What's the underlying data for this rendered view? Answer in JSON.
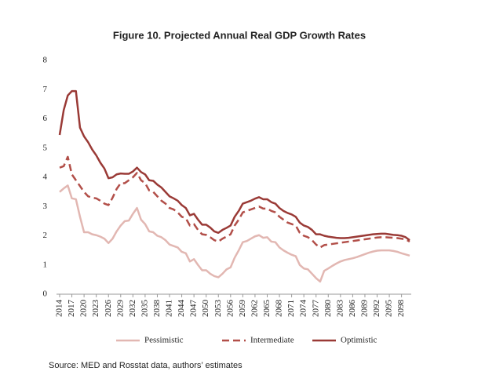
{
  "chart_data": {
    "type": "line",
    "title": "Figure 10. Projected Annual Real GDP Growth Rates",
    "source": "Source: MED and Rosstat data, authors’ estimates",
    "x": [
      2014,
      2015,
      2016,
      2017,
      2018,
      2019,
      2020,
      2021,
      2022,
      2023,
      2024,
      2025,
      2026,
      2027,
      2028,
      2029,
      2030,
      2031,
      2032,
      2033,
      2034,
      2035,
      2036,
      2037,
      2038,
      2039,
      2040,
      2041,
      2042,
      2043,
      2044,
      2045,
      2046,
      2047,
      2048,
      2049,
      2050,
      2051,
      2052,
      2053,
      2054,
      2055,
      2056,
      2057,
      2058,
      2059,
      2060,
      2061,
      2062,
      2063,
      2064,
      2065,
      2066,
      2067,
      2068,
      2069,
      2070,
      2071,
      2072,
      2073,
      2074,
      2075,
      2076,
      2077,
      2078,
      2079,
      2080,
      2081,
      2082,
      2083,
      2084,
      2085,
      2086,
      2087,
      2088,
      2089,
      2090,
      2091,
      2092,
      2093,
      2094,
      2095,
      2096,
      2097,
      2098,
      2099,
      2100
    ],
    "xlim": [
      2014,
      2100
    ],
    "xticks": [
      2014,
      2017,
      2020,
      2023,
      2026,
      2029,
      2032,
      2035,
      2038,
      2041,
      2044,
      2047,
      2050,
      2053,
      2056,
      2059,
      2062,
      2065,
      2068,
      2071,
      2074,
      2077,
      2080,
      2083,
      2086,
      2089,
      2092,
      2095,
      2098
    ],
    "ylim": [
      0,
      8
    ],
    "yticks": [
      0,
      1,
      2,
      3,
      4,
      5,
      6,
      7,
      8
    ],
    "grid": false,
    "legend": "bottom",
    "series": [
      {
        "name": "Pessimistic",
        "color": "#e2b7b2",
        "dash": false,
        "values": [
          3.5,
          3.62,
          3.72,
          3.28,
          3.25,
          2.65,
          2.12,
          2.12,
          2.05,
          2.02,
          1.97,
          1.9,
          1.75,
          1.9,
          2.15,
          2.35,
          2.5,
          2.52,
          2.75,
          2.95,
          2.55,
          2.4,
          2.15,
          2.12,
          2.0,
          1.95,
          1.85,
          1.7,
          1.65,
          1.6,
          1.45,
          1.4,
          1.12,
          1.2,
          1.0,
          0.82,
          0.82,
          0.7,
          0.62,
          0.58,
          0.7,
          0.85,
          0.92,
          1.25,
          1.5,
          1.78,
          1.82,
          1.9,
          1.98,
          2.02,
          1.93,
          1.95,
          1.8,
          1.78,
          1.6,
          1.5,
          1.42,
          1.35,
          1.3,
          1.0,
          0.88,
          0.85,
          0.7,
          0.55,
          0.43,
          0.8,
          0.88,
          0.97,
          1.05,
          1.12,
          1.17,
          1.2,
          1.23,
          1.27,
          1.32,
          1.37,
          1.42,
          1.46,
          1.49,
          1.5,
          1.5,
          1.5,
          1.48,
          1.45,
          1.4,
          1.36,
          1.32
        ]
      },
      {
        "name": "Intermediate",
        "color": "#b24f49",
        "dash": true,
        "values": [
          4.33,
          4.38,
          4.7,
          4.1,
          3.9,
          3.7,
          3.5,
          3.35,
          3.3,
          3.28,
          3.2,
          3.1,
          3.05,
          3.3,
          3.6,
          3.8,
          3.8,
          3.9,
          4.0,
          4.15,
          3.9,
          3.8,
          3.55,
          3.5,
          3.35,
          3.2,
          3.1,
          2.95,
          2.9,
          2.8,
          2.65,
          2.6,
          2.35,
          2.4,
          2.2,
          2.05,
          2.03,
          1.95,
          1.85,
          1.8,
          1.9,
          1.97,
          2.05,
          2.35,
          2.55,
          2.8,
          2.85,
          2.9,
          2.95,
          3.0,
          2.93,
          2.93,
          2.85,
          2.8,
          2.65,
          2.55,
          2.45,
          2.4,
          2.35,
          2.1,
          2.0,
          1.95,
          1.85,
          1.7,
          1.6,
          1.68,
          1.7,
          1.72,
          1.74,
          1.76,
          1.78,
          1.8,
          1.82,
          1.84,
          1.86,
          1.88,
          1.9,
          1.92,
          1.94,
          1.95,
          1.95,
          1.94,
          1.93,
          1.92,
          1.9,
          1.88,
          1.8
        ]
      },
      {
        "name": "Optimistic",
        "color": "#9a3a36",
        "dash": false,
        "values": [
          5.45,
          6.3,
          6.8,
          6.95,
          6.95,
          5.7,
          5.4,
          5.2,
          4.95,
          4.75,
          4.5,
          4.3,
          3.97,
          4.0,
          4.1,
          4.13,
          4.12,
          4.12,
          4.2,
          4.33,
          4.18,
          4.1,
          3.9,
          3.88,
          3.75,
          3.65,
          3.5,
          3.35,
          3.28,
          3.2,
          3.05,
          2.95,
          2.7,
          2.75,
          2.55,
          2.38,
          2.38,
          2.28,
          2.15,
          2.1,
          2.2,
          2.27,
          2.35,
          2.65,
          2.85,
          3.1,
          3.15,
          3.2,
          3.27,
          3.32,
          3.25,
          3.25,
          3.15,
          3.1,
          2.95,
          2.85,
          2.78,
          2.73,
          2.65,
          2.45,
          2.35,
          2.3,
          2.2,
          2.05,
          2.05,
          2.0,
          1.97,
          1.95,
          1.93,
          1.92,
          1.92,
          1.93,
          1.95,
          1.97,
          1.99,
          2.01,
          2.03,
          2.05,
          2.06,
          2.07,
          2.07,
          2.05,
          2.03,
          2.02,
          2.0,
          1.95,
          1.85
        ]
      }
    ]
  }
}
